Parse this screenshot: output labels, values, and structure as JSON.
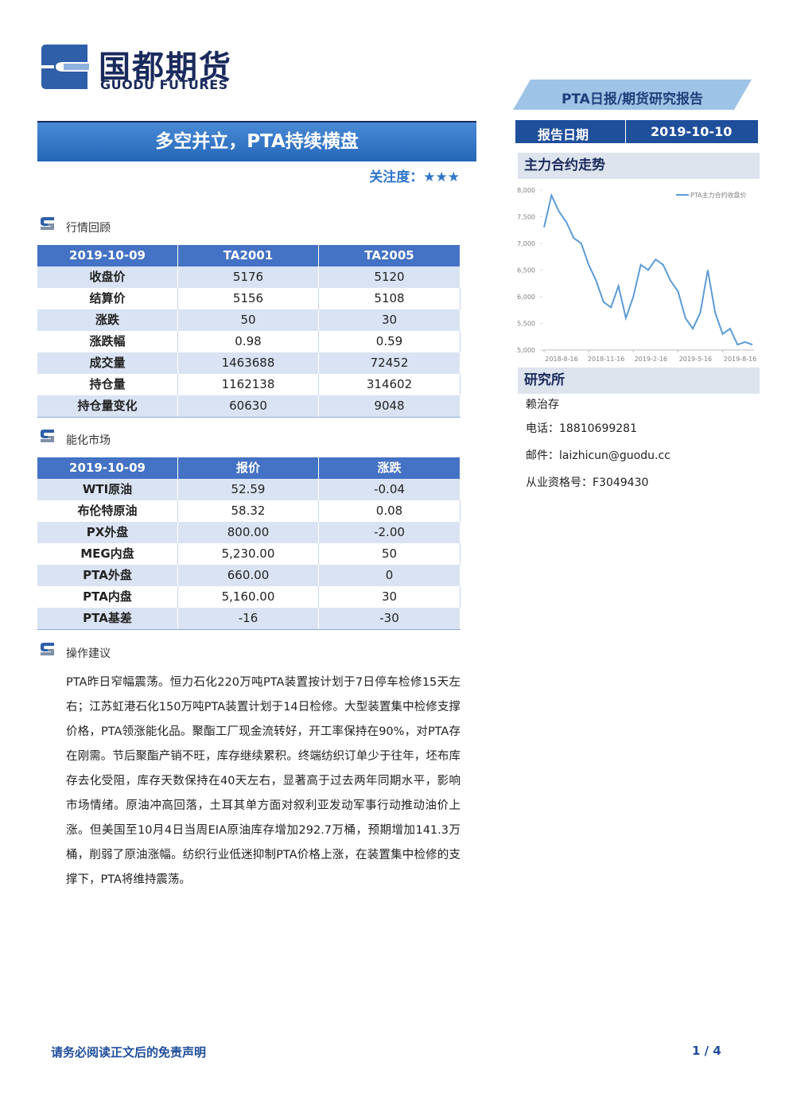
{
  "header": {
    "logo_cn": "国都期货",
    "logo_en": "GUODU FUTURES",
    "report_type": "PTA日报/期货研究报告",
    "date_label": "报告日期",
    "date": "2019-10-10"
  },
  "title": "多空并立，PTA持续横盘",
  "attention": "关注度：★★★",
  "sections": [
    {
      "title": "行情回顾",
      "table": {
        "header": [
          "2019-10-09",
          "TA2001",
          "TA2005"
        ],
        "rows": [
          [
            "收盘价",
            "5176",
            "5120"
          ],
          [
            "结算价",
            "5156",
            "5108"
          ],
          [
            "涨跌",
            "50",
            "30"
          ],
          [
            "涨跌幅",
            "0.98",
            "0.59"
          ],
          [
            "成交量",
            "1463688",
            "72452"
          ],
          [
            "持仓量",
            "1162138",
            "314602"
          ],
          [
            "持仓量变化",
            "60630",
            "9048"
          ]
        ]
      }
    },
    {
      "title": "能化市场",
      "table": {
        "header": [
          "2019-10-09",
          "报价",
          "涨跌"
        ],
        "rows": [
          [
            "WTI原油",
            "52.59",
            "-0.04"
          ],
          [
            "布伦特原油",
            "58.32",
            "0.08"
          ],
          [
            "PX外盘",
            "800.00",
            "-2.00"
          ],
          [
            "MEG内盘",
            "5,230.00",
            "50"
          ],
          [
            "PTA外盘",
            "660.00",
            "0"
          ],
          [
            "PTA内盘",
            "5,160.00",
            "30"
          ],
          [
            "PTA基差",
            "-16",
            "-30"
          ]
        ]
      }
    },
    {
      "title": "操作建议",
      "text": "PTA昨日窄幅震荡。恒力石化220万吨PTA装置按计划于7日停车检修15天左右；江苏虹港石化150万吨PTA装置计划于14日检修。大型装置集中检修支撑价格，PTA领涨能化品。聚酯工厂现金流转好，开工率保持在90%，对PTA存在刚需。节后聚酯产销不旺，库存继续累积。终端纺织订单少于往年，坯布库存去化受阻，库存天数保持在40天左右，显著高于过去两年同期水平，影响市场情绪。原油冲高回落，土耳其单方面对叙利亚发动军事行动推动油价上涨。但美国至10月4日当周EIA原油库存增加292.7万桶，预期增加141.3万桶，削弱了原油涨幅。纺织行业低迷抑制PTA价格上涨，在装置集中检修的支撑下，PTA将维持震荡。"
    }
  ],
  "sidebar": {
    "chart_title": "主力合约走势",
    "institute": "研究所",
    "contacts": [
      "赖治存",
      "电话：18810699281",
      "邮件：laizhicun@guodu.cc",
      "从业资格号：F3049430"
    ]
  },
  "footer": {
    "disclaimer": "请务必阅读正文后的免责声明",
    "page": "1 / 4"
  },
  "chart_data": {
    "type": "line",
    "categories": [
      "2018-8-16",
      null,
      null,
      null,
      null,
      null,
      "2018-11-16",
      null,
      null,
      null,
      null,
      null,
      "2019-2-16",
      null,
      null,
      null,
      null,
      null,
      "2019-5-16",
      null,
      null,
      null,
      null,
      null,
      "2019-8-16",
      null,
      null,
      null,
      null
    ],
    "series": [
      {
        "name": "PTA主力合约收盘价",
        "color": "#5b9bd5",
        "values": [
          7300,
          7900,
          7600,
          7400,
          7100,
          7000,
          6600,
          6300,
          5900,
          5800,
          6200,
          5600,
          6000,
          6600,
          6500,
          6700,
          6600,
          6300,
          6100,
          5600,
          5400,
          5700,
          6500,
          5700,
          5300,
          5400,
          5100,
          5150,
          5100
        ]
      }
    ],
    "ylim": [
      5000,
      8000
    ],
    "yticks": [
      {
        "value": 5000,
        "label": "5,000"
      },
      {
        "value": 5500,
        "label": "5,500"
      },
      {
        "value": 6000,
        "label": "6,000"
      },
      {
        "value": 6500,
        "label": "6,500"
      },
      {
        "value": 7000,
        "label": "7,000"
      },
      {
        "value": 7500,
        "label": "7,500"
      },
      {
        "value": 8000,
        "label": "8,000"
      }
    ],
    "legend": "upper right"
  }
}
